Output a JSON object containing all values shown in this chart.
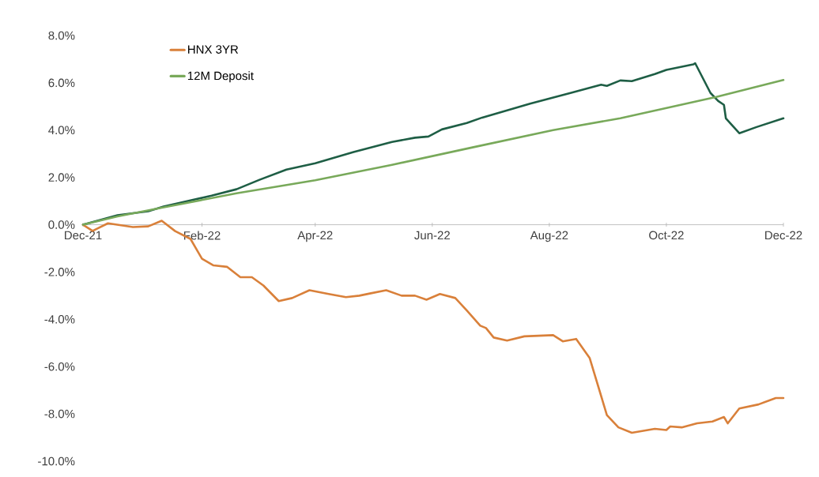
{
  "chart_data": {
    "type": "line",
    "marker": "none",
    "legend": "top left",
    "xlim": [
      "2021-12-01",
      "2022-12-01"
    ],
    "xticks": [
      {
        "value": "2021-12",
        "label": "Dec-21"
      },
      {
        "value": "2022-02",
        "label": "Feb-22"
      },
      {
        "value": "2022-04",
        "label": "Apr-22"
      },
      {
        "value": "2022-06",
        "label": "Jun-22"
      },
      {
        "value": "2022-08",
        "label": "Aug-22"
      },
      {
        "value": "2022-10",
        "label": "Oct-22"
      },
      {
        "value": "2022-12",
        "label": "Dec-22"
      }
    ],
    "ylim": [
      -10,
      8
    ],
    "yticks": [
      {
        "value": -10,
        "label": "-10.0%"
      },
      {
        "value": -8,
        "label": "-8.0%"
      },
      {
        "value": -6,
        "label": "-6.0%"
      },
      {
        "value": -4,
        "label": "-4.0%"
      },
      {
        "value": -2,
        "label": "-2.0%"
      },
      {
        "value": 0,
        "label": "0.0%"
      },
      {
        "value": 2,
        "label": "2.0%"
      },
      {
        "value": 4,
        "label": "4.0%"
      },
      {
        "value": 6,
        "label": "6.0%"
      },
      {
        "value": 8,
        "label": "8.0%"
      }
    ],
    "series": [
      {
        "color": "#1e5e45",
        "x": [
          "2021-12-01",
          "2021-12-19",
          "2022-01-04",
          "2022-01-12",
          "2022-02-06",
          "2022-02-19",
          "2022-03-03",
          "2022-03-17",
          "2022-04-01",
          "2022-04-21",
          "2022-05-11",
          "2022-05-23",
          "2022-05-30",
          "2022-06-06",
          "2022-06-19",
          "2022-06-27",
          "2022-07-22",
          "2022-08-12",
          "2022-08-28",
          "2022-08-31",
          "2022-09-07",
          "2022-09-13",
          "2022-09-25",
          "2022-10-01",
          "2022-10-15",
          "2022-10-16",
          "2022-10-24",
          "2022-10-28",
          "2022-10-31",
          "2022-11-01",
          "2022-11-08",
          "2022-11-17",
          "2022-12-01"
        ],
        "values": [
          0,
          0.4,
          0.57,
          0.77,
          1.23,
          1.5,
          1.9,
          2.33,
          2.6,
          3.07,
          3.5,
          3.68,
          3.73,
          4.03,
          4.3,
          4.53,
          5.12,
          5.57,
          5.92,
          5.87,
          6.1,
          6.07,
          6.37,
          6.55,
          6.78,
          6.83,
          5.57,
          5.23,
          5.07,
          4.5,
          3.87,
          4.13,
          4.5
        ]
      },
      {
        "name": "HNX 3YR",
        "color": "#d9803a",
        "x": [
          "2021-12-01",
          "2021-12-06",
          "2021-12-14",
          "2021-12-27",
          "2022-01-04",
          "2022-01-11",
          "2022-01-18",
          "2022-01-26",
          "2022-02-01",
          "2022-02-07",
          "2022-02-14",
          "2022-02-21",
          "2022-02-27",
          "2022-03-05",
          "2022-03-13",
          "2022-03-20",
          "2022-03-29",
          "2022-04-08",
          "2022-04-17",
          "2022-04-24",
          "2022-04-30",
          "2022-05-08",
          "2022-05-16",
          "2022-05-23",
          "2022-05-29",
          "2022-06-05",
          "2022-06-13",
          "2022-06-19",
          "2022-06-26",
          "2022-06-29",
          "2022-07-03",
          "2022-07-10",
          "2022-07-19",
          "2022-08-03",
          "2022-08-08",
          "2022-08-15",
          "2022-08-22",
          "2022-08-31",
          "2022-09-06",
          "2022-09-13",
          "2022-09-25",
          "2022-10-01",
          "2022-10-03",
          "2022-10-09",
          "2022-10-17",
          "2022-10-25",
          "2022-10-31",
          "2022-11-02",
          "2022-11-08",
          "2022-11-18",
          "2022-11-27",
          "2022-12-01"
        ],
        "values": [
          0,
          -0.26,
          0.06,
          -0.1,
          -0.07,
          0.17,
          -0.27,
          -0.6,
          -1.44,
          -1.72,
          -1.78,
          -2.22,
          -2.22,
          -2.57,
          -3.23,
          -3.1,
          -2.77,
          -2.93,
          -3.06,
          -3.0,
          -2.9,
          -2.77,
          -3.0,
          -3.0,
          -3.17,
          -2.93,
          -3.1,
          -3.63,
          -4.27,
          -4.37,
          -4.77,
          -4.9,
          -4.72,
          -4.67,
          -4.93,
          -4.83,
          -5.63,
          -8.05,
          -8.57,
          -8.8,
          -8.63,
          -8.68,
          -8.53,
          -8.57,
          -8.4,
          -8.32,
          -8.13,
          -8.4,
          -7.77,
          -7.6,
          -7.33,
          -7.33
        ]
      },
      {
        "name": "12M Deposit",
        "color": "#78a95a",
        "x": [
          "2021-12-01",
          "2021-12-19",
          "2022-01-10",
          "2022-02-19",
          "2022-04-01",
          "2022-05-11",
          "2022-06-22",
          "2022-08-03",
          "2022-09-07",
          "2022-10-27",
          "2022-12-01"
        ],
        "values": [
          0,
          0.35,
          0.7,
          1.33,
          1.88,
          2.53,
          3.27,
          4.0,
          4.5,
          5.4,
          6.12
        ]
      }
    ]
  }
}
